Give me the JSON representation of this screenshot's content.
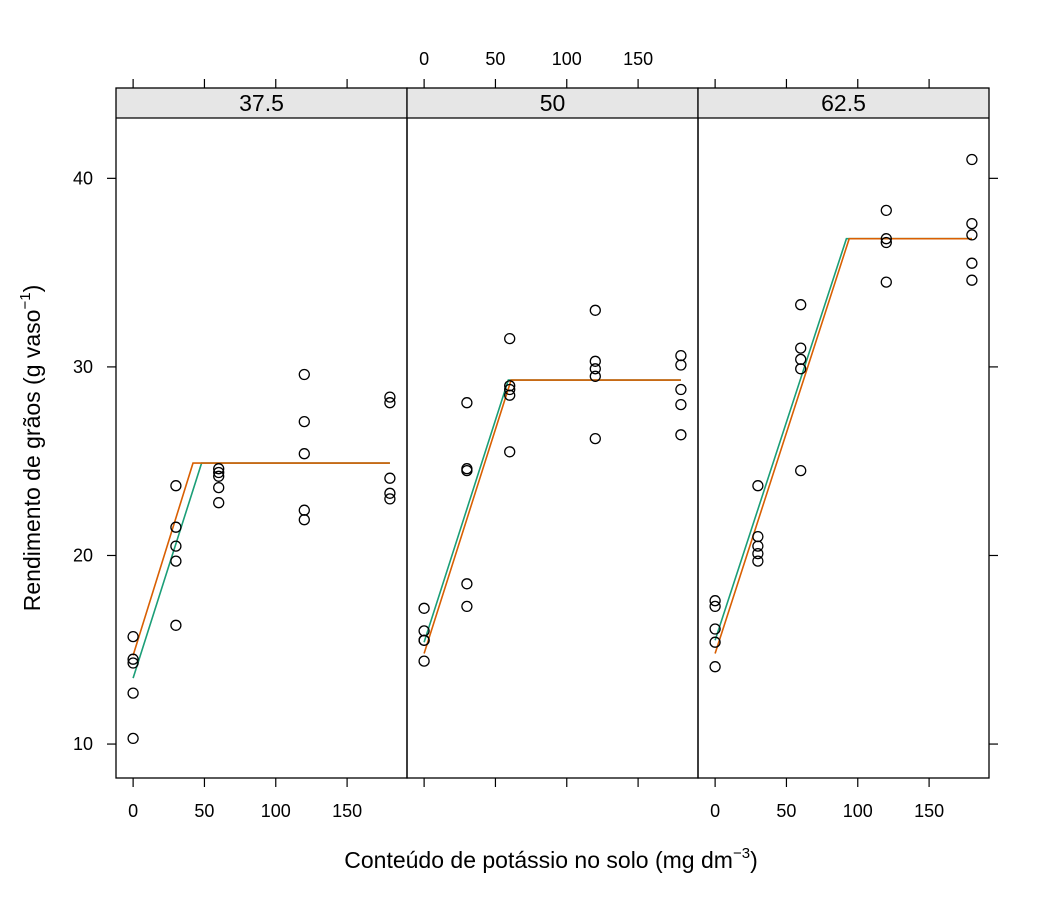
{
  "chart_data": {
    "type": "scatter",
    "panels_label_is": "strip",
    "xlim": [
      -12,
      192
    ],
    "ylim": [
      8.2,
      43.2
    ],
    "x_ticks": [
      0,
      50,
      100,
      150
    ],
    "y_ticks": [
      10,
      20,
      30,
      40
    ],
    "xlabel_main": "Conteúdo de potássio no solo (mg dm",
    "xlabel_sup": "−3",
    "xlabel_tail": ")",
    "ylabel_main": "Rendimento de grãos (g vaso",
    "ylabel_sup": "−1",
    "ylabel_tail": ")",
    "line_colors": [
      "#1b9e77",
      "#d95f02"
    ],
    "point_color": "#000000",
    "strip_color": "#e6e6e6",
    "panels": [
      {
        "strip": "37.5",
        "points": [
          [
            0,
            15.7
          ],
          [
            0,
            14.5
          ],
          [
            0,
            14.3
          ],
          [
            0,
            12.7
          ],
          [
            0,
            10.3
          ],
          [
            30,
            23.7
          ],
          [
            30,
            21.5
          ],
          [
            30,
            20.5
          ],
          [
            30,
            19.7
          ],
          [
            30,
            16.3
          ],
          [
            60,
            24.6
          ],
          [
            60,
            24.4
          ],
          [
            60,
            24.2
          ],
          [
            60,
            23.6
          ],
          [
            60,
            22.8
          ],
          [
            120,
            29.6
          ],
          [
            120,
            27.1
          ],
          [
            120,
            25.4
          ],
          [
            120,
            22.4
          ],
          [
            120,
            21.9
          ],
          [
            180,
            28.4
          ],
          [
            180,
            28.1
          ],
          [
            180,
            24.1
          ],
          [
            180,
            23.3
          ],
          [
            180,
            23.0
          ]
        ],
        "fits": [
          [
            [
              0,
              13.5
            ],
            [
              48,
              24.9
            ],
            [
              180,
              24.9
            ]
          ],
          [
            [
              0,
              14.7
            ],
            [
              42,
              24.9
            ],
            [
              180,
              24.9
            ]
          ]
        ]
      },
      {
        "strip": "50",
        "points": [
          [
            0,
            17.2
          ],
          [
            0,
            16.0
          ],
          [
            0,
            15.5
          ],
          [
            0,
            15.5
          ],
          [
            0,
            14.4
          ],
          [
            30,
            28.1
          ],
          [
            30,
            24.6
          ],
          [
            30,
            24.5
          ],
          [
            30,
            18.5
          ],
          [
            30,
            17.3
          ],
          [
            60,
            31.5
          ],
          [
            60,
            29.0
          ],
          [
            60,
            28.8
          ],
          [
            60,
            28.5
          ],
          [
            60,
            25.5
          ],
          [
            120,
            33.0
          ],
          [
            120,
            30.3
          ],
          [
            120,
            29.9
          ],
          [
            120,
            29.5
          ],
          [
            120,
            26.2
          ],
          [
            180,
            30.6
          ],
          [
            180,
            30.1
          ],
          [
            180,
            28.8
          ],
          [
            180,
            28.0
          ],
          [
            180,
            26.4
          ]
        ],
        "fits": [
          [
            [
              0,
              15.4
            ],
            [
              59,
              29.3
            ],
            [
              180,
              29.3
            ]
          ],
          [
            [
              0,
              14.8
            ],
            [
              61,
              29.3
            ],
            [
              180,
              29.3
            ]
          ]
        ]
      },
      {
        "strip": "62.5",
        "points": [
          [
            0,
            17.6
          ],
          [
            0,
            17.3
          ],
          [
            0,
            16.1
          ],
          [
            0,
            15.4
          ],
          [
            0,
            14.1
          ],
          [
            30,
            23.7
          ],
          [
            30,
            21.0
          ],
          [
            30,
            20.5
          ],
          [
            30,
            20.1
          ],
          [
            30,
            19.7
          ],
          [
            60,
            33.3
          ],
          [
            60,
            31.0
          ],
          [
            60,
            30.4
          ],
          [
            60,
            29.9
          ],
          [
            60,
            24.5
          ],
          [
            120,
            38.3
          ],
          [
            120,
            36.8
          ],
          [
            120,
            36.6
          ],
          [
            120,
            34.5
          ],
          [
            180,
            41.0
          ],
          [
            180,
            37.6
          ],
          [
            180,
            37.0
          ],
          [
            180,
            35.5
          ],
          [
            180,
            34.6
          ]
        ],
        "fits": [
          [
            [
              0,
              15.5
            ],
            [
              92,
              36.8
            ],
            [
              180,
              36.8
            ]
          ],
          [
            [
              0,
              14.8
            ],
            [
              94,
              36.8
            ],
            [
              180,
              36.8
            ]
          ]
        ]
      }
    ]
  }
}
